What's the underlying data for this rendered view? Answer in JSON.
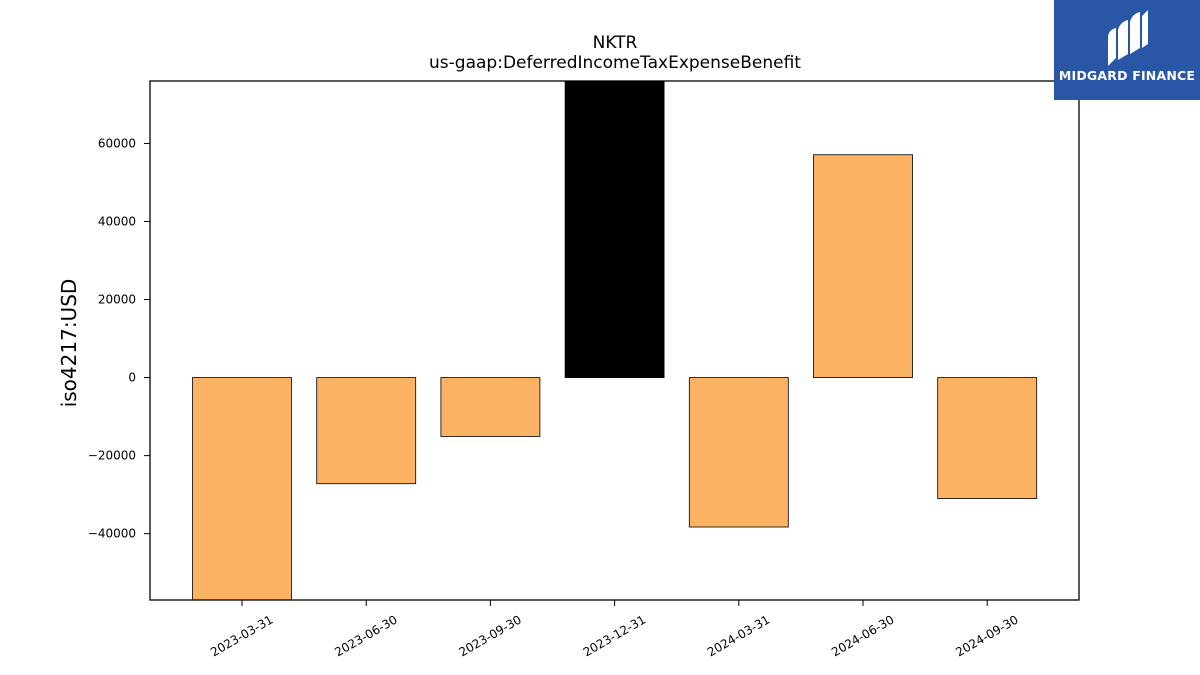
{
  "chart_data": {
    "type": "bar",
    "title": "NKTR",
    "subtitle": "us-gaap:DeferredIncomeTaxExpenseBenefit",
    "ylabel": "iso4217:USD",
    "xlabel": "",
    "categories": [
      "2023-03-31",
      "2023-06-30",
      "2023-09-30",
      "2023-12-31",
      "2024-03-31",
      "2024-06-30",
      "2024-09-30"
    ],
    "values": [
      -57000,
      -27200,
      -15100,
      76000,
      -38300,
      57100,
      -31000
    ],
    "ylim": [
      -57000,
      76000
    ],
    "yticks": [
      -40000,
      -20000,
      0,
      20000,
      40000,
      60000
    ],
    "ytick_labels": [
      "−40000",
      "−20000",
      "0",
      "20000",
      "40000",
      "60000"
    ],
    "bar_colors": [
      "#fbb262",
      "#fbb262",
      "#fbb262",
      "#000000",
      "#fbb262",
      "#fbb262",
      "#fbb262"
    ],
    "grid": false,
    "legend": "none"
  },
  "brand": {
    "name": "MIDGARD FINANCE",
    "icon": "midgard-logo-icon",
    "color": "#2957a6"
  }
}
